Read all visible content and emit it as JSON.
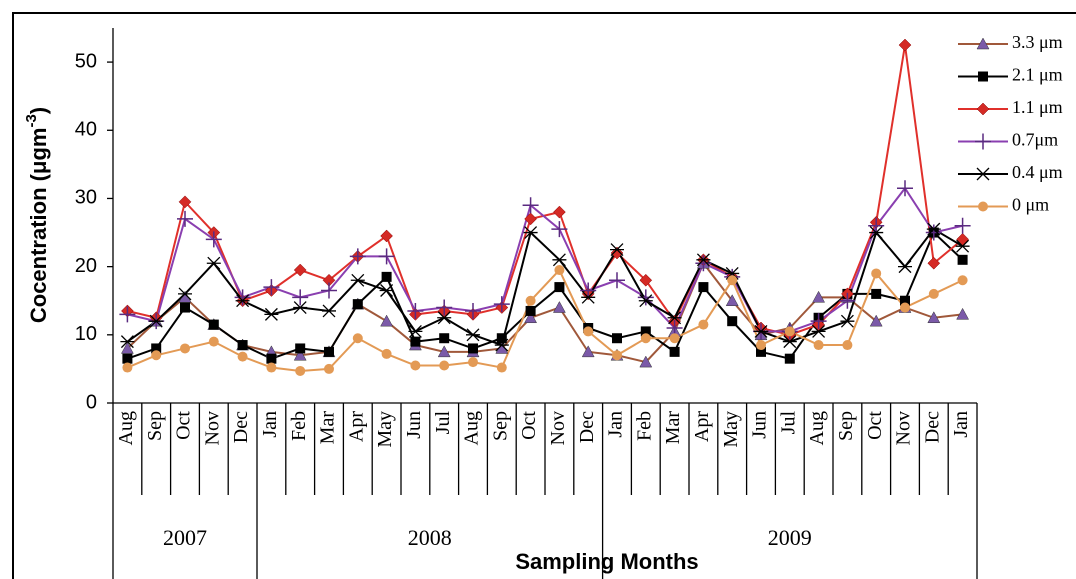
{
  "chart_data": {
    "type": "line",
    "ylabel_parts": [
      "Cocentration (μgm",
      "-3",
      ")"
    ],
    "xlabel": "Sampling Months",
    "categories": [
      "Aug",
      "Sep",
      "Oct",
      "Nov",
      "Dec",
      "Jan",
      "Feb",
      "Mar",
      "Apr",
      "May",
      "Jun",
      "Jul",
      "Aug",
      "Sep",
      "Oct",
      "Nov",
      "Dec",
      "Jan",
      "Feb",
      "Mar",
      "Apr",
      "May",
      "Jun",
      "Jul",
      "Aug",
      "Sep",
      "Oct",
      "Nov",
      "Dec",
      "Jan"
    ],
    "groups": [
      {
        "label": "2007",
        "categories": 5
      },
      {
        "label": "2008",
        "categories": 12
      },
      {
        "label": "2009",
        "categories": 13
      }
    ],
    "ylim": [
      0,
      55
    ],
    "yticks": [
      0,
      10,
      20,
      30,
      40,
      50
    ],
    "series": [
      {
        "name": "3.3 μm",
        "color": "#a0583a",
        "marker": "triangle",
        "marker_color": "#7b5aa8",
        "values": [
          8,
          12,
          15.5,
          11.5,
          8.5,
          7.5,
          7,
          7.5,
          14.5,
          12,
          8.5,
          7.5,
          7.5,
          8,
          12.5,
          14,
          7.5,
          7,
          6,
          10.5,
          20.5,
          15,
          10,
          11,
          15.5,
          15.5,
          12,
          14,
          12.5,
          13
        ]
      },
      {
        "name": "2.1 μm",
        "color": "#000000",
        "marker": "square",
        "marker_color": "#000000",
        "values": [
          6.5,
          8,
          14,
          11.5,
          8.5,
          6.5,
          8,
          7.5,
          14.5,
          18.5,
          9,
          9.5,
          8,
          9.5,
          13.5,
          17,
          11,
          9.5,
          10.5,
          7.5,
          17,
          12,
          7.5,
          6.5,
          12.5,
          16,
          16,
          15,
          25,
          21
        ]
      },
      {
        "name": "1.1 μm",
        "color": "#e0302b",
        "marker": "diamond",
        "marker_color": "#d42a25",
        "values": [
          13.5,
          12.5,
          29.5,
          25,
          15,
          16.5,
          19.5,
          18,
          21.5,
          24.5,
          13,
          13.5,
          13,
          14,
          27,
          28,
          16,
          22,
          18,
          12,
          21,
          18.5,
          11,
          10,
          11.5,
          16,
          26.5,
          52.5,
          20.5,
          24
        ]
      },
      {
        "name": "0.7μm",
        "color": "#8a3fb0",
        "marker": "plus",
        "marker_color": "#5a2a80",
        "values": [
          13,
          12,
          27,
          24,
          15.5,
          17,
          15.5,
          16.5,
          21.5,
          21.5,
          13.5,
          14,
          13.5,
          14.5,
          29,
          25.5,
          16.5,
          18,
          15.5,
          11,
          20.5,
          18.5,
          10.5,
          10.5,
          12,
          15,
          26,
          31.5,
          25,
          26
        ]
      },
      {
        "name": "0.4 μm",
        "color": "#000000",
        "marker": "star",
        "marker_color": "#000000",
        "values": [
          9,
          12,
          16,
          20.5,
          15,
          13,
          14,
          13.5,
          18,
          16.5,
          10.5,
          12.5,
          10,
          8.5,
          25,
          21,
          15.5,
          22.5,
          15,
          12.5,
          21,
          19,
          10.5,
          9,
          10.5,
          12,
          25,
          20,
          25.5,
          23
        ]
      },
      {
        "name": "0 μm",
        "color": "#e39a55",
        "marker": "circle",
        "marker_color": "#e39a55",
        "values": [
          5.2,
          7,
          8,
          9,
          6.8,
          5.2,
          4.7,
          5,
          9.5,
          7.2,
          5.5,
          5.5,
          6,
          5.2,
          15,
          19.5,
          10.5,
          7,
          9.5,
          9.5,
          11.5,
          18,
          8.5,
          10.5,
          8.5,
          8.5,
          19,
          14,
          16,
          18
        ]
      }
    ]
  }
}
